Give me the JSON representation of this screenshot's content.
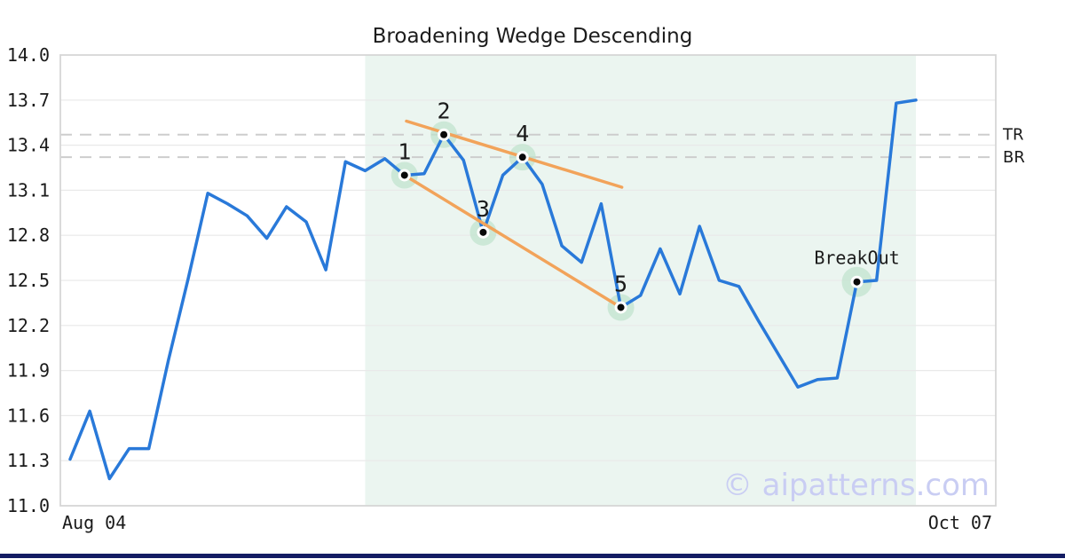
{
  "page": {
    "watermark": "© aipatterns.com"
  },
  "chart_data": {
    "type": "line",
    "title": "Broadening Wedge Descending",
    "grid": true,
    "legend": "none",
    "x_axis": {
      "start_label": "Aug 04",
      "end_label": "Oct 07"
    },
    "y_axis": {
      "min": 11.0,
      "max": 14.0,
      "tick_step": 0.3,
      "tick_labels": [
        "14.0",
        "13.7",
        "13.4",
        "13.1",
        "12.8",
        "12.5",
        "12.2",
        "11.9",
        "11.6",
        "11.3",
        "11.0"
      ]
    },
    "series": [
      {
        "name": "price",
        "values": [
          11.31,
          11.63,
          11.18,
          11.38,
          11.38,
          11.97,
          12.51,
          13.08,
          13.01,
          12.93,
          12.78,
          12.99,
          12.89,
          12.57,
          13.29,
          13.23,
          13.31,
          13.2,
          13.21,
          13.47,
          13.3,
          12.82,
          13.2,
          13.32,
          13.14,
          12.73,
          12.62,
          13.01,
          12.32,
          12.4,
          12.71,
          12.41,
          12.86,
          12.5,
          12.46,
          12.23,
          12.01,
          11.79,
          11.84,
          11.85,
          12.49,
          12.5,
          13.68,
          13.7
        ]
      }
    ],
    "pattern_points": [
      {
        "label": "1",
        "index": 17,
        "value": 13.2
      },
      {
        "label": "2",
        "index": 19,
        "value": 13.47
      },
      {
        "label": "3",
        "index": 21,
        "value": 12.82
      },
      {
        "label": "4",
        "index": 23,
        "value": 13.32
      },
      {
        "label": "5",
        "index": 28,
        "value": 12.32
      }
    ],
    "breakout_point": {
      "label": "BreakOut",
      "index": 40,
      "value": 12.49
    },
    "levels": [
      {
        "label": "TR",
        "value": 13.47
      },
      {
        "label": "BR",
        "value": 13.32
      }
    ],
    "trendlines": [
      {
        "name": "upper-resistance",
        "x1_index": 17.1,
        "v1": 13.56,
        "x2_index": 28.05,
        "v2": 13.12
      },
      {
        "name": "lower-support",
        "x1_index": 17.0,
        "v1": 13.2,
        "x2_index": 28.0,
        "v2": 12.32
      }
    ],
    "pattern_region": {
      "start_index": 15,
      "end_index": 43
    },
    "colors": {
      "price_line": "#2979d9",
      "trendline": "#f2a35a",
      "point_halo": "#bfe2cc",
      "point_dot": "#0a0a0a",
      "pattern_region": "#ebf5f0",
      "level_dash": "#cdcdcd",
      "gridline": "#e9e9e9",
      "plot_border": "#d6d6d6",
      "watermark": "#c9cdf3",
      "bottom_bar": "#141c63"
    }
  }
}
